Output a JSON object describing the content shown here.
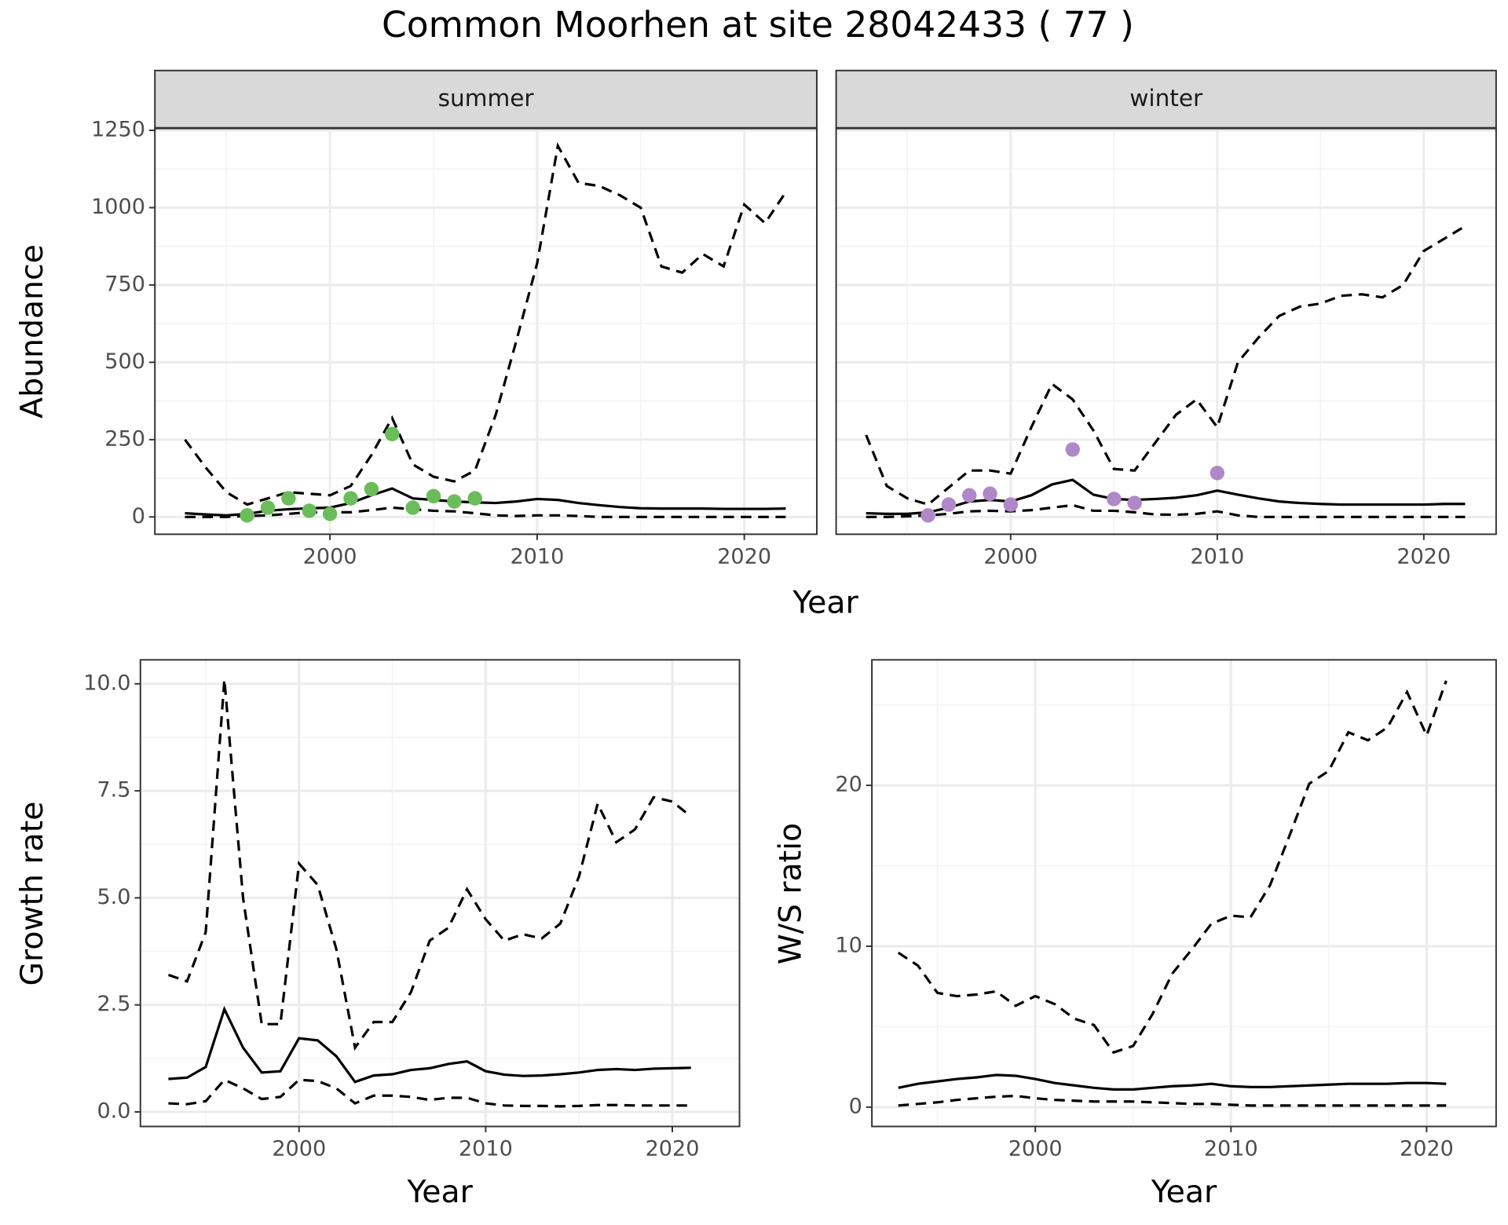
{
  "title": "Common Moorhen at site 28042433 ( 77 )",
  "chart_data": [
    {
      "type": "line",
      "x_label": "Year",
      "y_label": "Abundance",
      "x": [
        1993,
        1994,
        1995,
        1996,
        1997,
        1998,
        1999,
        2000,
        2001,
        2002,
        2003,
        2004,
        2005,
        2006,
        2007,
        2008,
        2009,
        2010,
        2011,
        2012,
        2013,
        2014,
        2015,
        2016,
        2017,
        2018,
        2019,
        2020,
        2021,
        2022
      ],
      "xlim": [
        1991.55,
        2023.5
      ],
      "xticks": [
        2000,
        2010,
        2020
      ],
      "ylim": [
        -56,
        1256
      ],
      "yticks": [
        0,
        250,
        500,
        750,
        1000,
        1250
      ],
      "grid": true,
      "facets": [
        {
          "label": "summer",
          "series": [
            {
              "style": "dashed",
              "color": "#000000",
              "values": [
                250,
                160,
                80,
                40,
                60,
                80,
                75,
                70,
                100,
                200,
                320,
                170,
                130,
                115,
                150,
                330,
                570,
                820,
                1200,
                1080,
                1070,
                1040,
                1000,
                810,
                790,
                850,
                810,
                1010,
                950,
                1050
              ]
            },
            {
              "style": "solid",
              "color": "#000000",
              "values": [
                12,
                8,
                5,
                10,
                20,
                25,
                28,
                30,
                45,
                70,
                92,
                60,
                55,
                50,
                47,
                45,
                50,
                58,
                55,
                45,
                38,
                32,
                28,
                27,
                27,
                27,
                26,
                26,
                26,
                27
              ]
            },
            {
              "style": "dashed",
              "color": "#000000",
              "values": [
                0,
                0,
                0,
                3,
                5,
                10,
                15,
                15,
                15,
                22,
                30,
                25,
                20,
                18,
                12,
                5,
                3,
                5,
                5,
                3,
                0,
                0,
                0,
                0,
                0,
                0,
                0,
                0,
                0,
                0
              ]
            },
            {
              "style": "points",
              "color": "#6abd5a",
              "x": [
                1996,
                1997,
                1998,
                1999,
                2000,
                2001,
                2002,
                2003,
                2004,
                2005,
                2006,
                2007
              ],
              "values": [
                5,
                30,
                60,
                20,
                10,
                60,
                90,
                268,
                30,
                67,
                50,
                60
              ]
            }
          ]
        },
        {
          "label": "winter",
          "series": [
            {
              "style": "dashed",
              "color": "#000000",
              "values": [
                265,
                100,
                60,
                40,
                95,
                150,
                150,
                140,
                290,
                430,
                380,
                280,
                155,
                150,
                240,
                330,
                380,
                290,
                500,
                580,
                650,
                680,
                690,
                715,
                720,
                710,
                750,
                860,
                900,
                940
              ]
            },
            {
              "style": "solid",
              "color": "#000000",
              "values": [
                12,
                10,
                10,
                15,
                30,
                50,
                55,
                50,
                70,
                105,
                120,
                72,
                58,
                55,
                58,
                62,
                70,
                85,
                72,
                60,
                50,
                45,
                42,
                40,
                40,
                40,
                40,
                40,
                42,
                42
              ]
            },
            {
              "style": "dashed",
              "color": "#000000",
              "values": [
                0,
                0,
                2,
                5,
                10,
                18,
                20,
                18,
                22,
                30,
                38,
                20,
                20,
                15,
                8,
                7,
                10,
                18,
                5,
                0,
                0,
                0,
                0,
                0,
                0,
                0,
                0,
                0,
                0,
                0
              ]
            },
            {
              "style": "points",
              "color": "#b088c8",
              "x": [
                1996,
                1997,
                1998,
                1999,
                2000,
                2003,
                2005,
                2006,
                2010
              ],
              "values": [
                5,
                40,
                70,
                75,
                40,
                218,
                58,
                45,
                142
              ]
            }
          ]
        }
      ]
    },
    {
      "type": "line",
      "x_label": "Year",
      "y_label": "Growth rate",
      "x": [
        1993,
        1994,
        1995,
        1996,
        1997,
        1998,
        1999,
        2000,
        2001,
        2002,
        2003,
        2004,
        2005,
        2006,
        2007,
        2008,
        2009,
        2010,
        2011,
        2012,
        2013,
        2014,
        2015,
        2016,
        2017,
        2018,
        2019,
        2020,
        2021
      ],
      "xlim": [
        1991.5,
        2023.6
      ],
      "xticks": [
        2000,
        2010,
        2020
      ],
      "ylim": [
        -0.34,
        10.56
      ],
      "yticks": [
        {
          "value": 0,
          "label": "0.0"
        },
        2.5,
        {
          "value": 5,
          "label": "5.0"
        },
        7.5,
        {
          "value": 10,
          "label": "10.0"
        }
      ],
      "grid": true,
      "series": [
        {
          "style": "dashed",
          "color": "#000000",
          "values": [
            3.2,
            3.05,
            4.2,
            10.1,
            5.0,
            2.05,
            2.05,
            5.8,
            5.3,
            3.8,
            1.5,
            2.1,
            2.1,
            2.8,
            4.0,
            4.3,
            5.2,
            4.5,
            4.0,
            4.15,
            4.05,
            4.4,
            5.5,
            7.2,
            6.3,
            6.6,
            7.35,
            7.25,
            6.9
          ]
        },
        {
          "style": "solid",
          "color": "#000000",
          "values": [
            0.77,
            0.8,
            1.05,
            2.4,
            1.5,
            0.92,
            0.95,
            1.72,
            1.67,
            1.3,
            0.7,
            0.85,
            0.88,
            0.98,
            1.02,
            1.12,
            1.18,
            0.95,
            0.87,
            0.84,
            0.85,
            0.88,
            0.92,
            0.98,
            1.0,
            0.98,
            1.01,
            1.02,
            1.03
          ]
        },
        {
          "style": "dashed",
          "color": "#000000",
          "values": [
            0.2,
            0.18,
            0.25,
            0.75,
            0.55,
            0.3,
            0.35,
            0.75,
            0.72,
            0.55,
            0.2,
            0.38,
            0.38,
            0.35,
            0.28,
            0.33,
            0.33,
            0.2,
            0.15,
            0.14,
            0.14,
            0.13,
            0.14,
            0.16,
            0.16,
            0.15,
            0.15,
            0.15,
            0.15
          ]
        }
      ]
    },
    {
      "type": "line",
      "x_label": "Year",
      "y_label": "W/S ratio",
      "x": [
        1993,
        1994,
        1995,
        1996,
        1997,
        1998,
        1999,
        2000,
        2001,
        2002,
        2003,
        2004,
        2005,
        2006,
        2007,
        2008,
        2009,
        2010,
        2011,
        2012,
        2013,
        2014,
        2015,
        2016,
        2017,
        2018,
        2019,
        2020,
        2021
      ],
      "xlim": [
        1991.65,
        2023.55
      ],
      "xticks": [
        2000,
        2010,
        2020
      ],
      "ylim": [
        -1.2,
        27.8
      ],
      "yticks": [
        0,
        10,
        20
      ],
      "grid": true,
      "series": [
        {
          "style": "dashed",
          "color": "#000000",
          "values": [
            9.6,
            8.8,
            7.1,
            6.9,
            7.0,
            7.2,
            6.3,
            6.9,
            6.4,
            5.5,
            5.1,
            3.4,
            3.8,
            5.8,
            8.3,
            9.8,
            11.4,
            11.9,
            11.8,
            13.8,
            16.9,
            20.1,
            20.9,
            23.3,
            22.8,
            23.6,
            25.8,
            23.1,
            26.5
          ]
        },
        {
          "style": "solid",
          "color": "#000000",
          "values": [
            1.2,
            1.45,
            1.6,
            1.75,
            1.85,
            2.0,
            1.95,
            1.75,
            1.5,
            1.35,
            1.2,
            1.1,
            1.1,
            1.2,
            1.3,
            1.35,
            1.45,
            1.3,
            1.25,
            1.25,
            1.3,
            1.35,
            1.4,
            1.45,
            1.45,
            1.45,
            1.5,
            1.5,
            1.45
          ]
        },
        {
          "style": "dashed",
          "color": "#000000",
          "values": [
            0.1,
            0.2,
            0.3,
            0.45,
            0.55,
            0.65,
            0.7,
            0.55,
            0.45,
            0.4,
            0.35,
            0.35,
            0.35,
            0.3,
            0.25,
            0.2,
            0.2,
            0.15,
            0.1,
            0.1,
            0.1,
            0.1,
            0.1,
            0.1,
            0.1,
            0.1,
            0.1,
            0.1,
            0.1
          ]
        }
      ]
    }
  ]
}
